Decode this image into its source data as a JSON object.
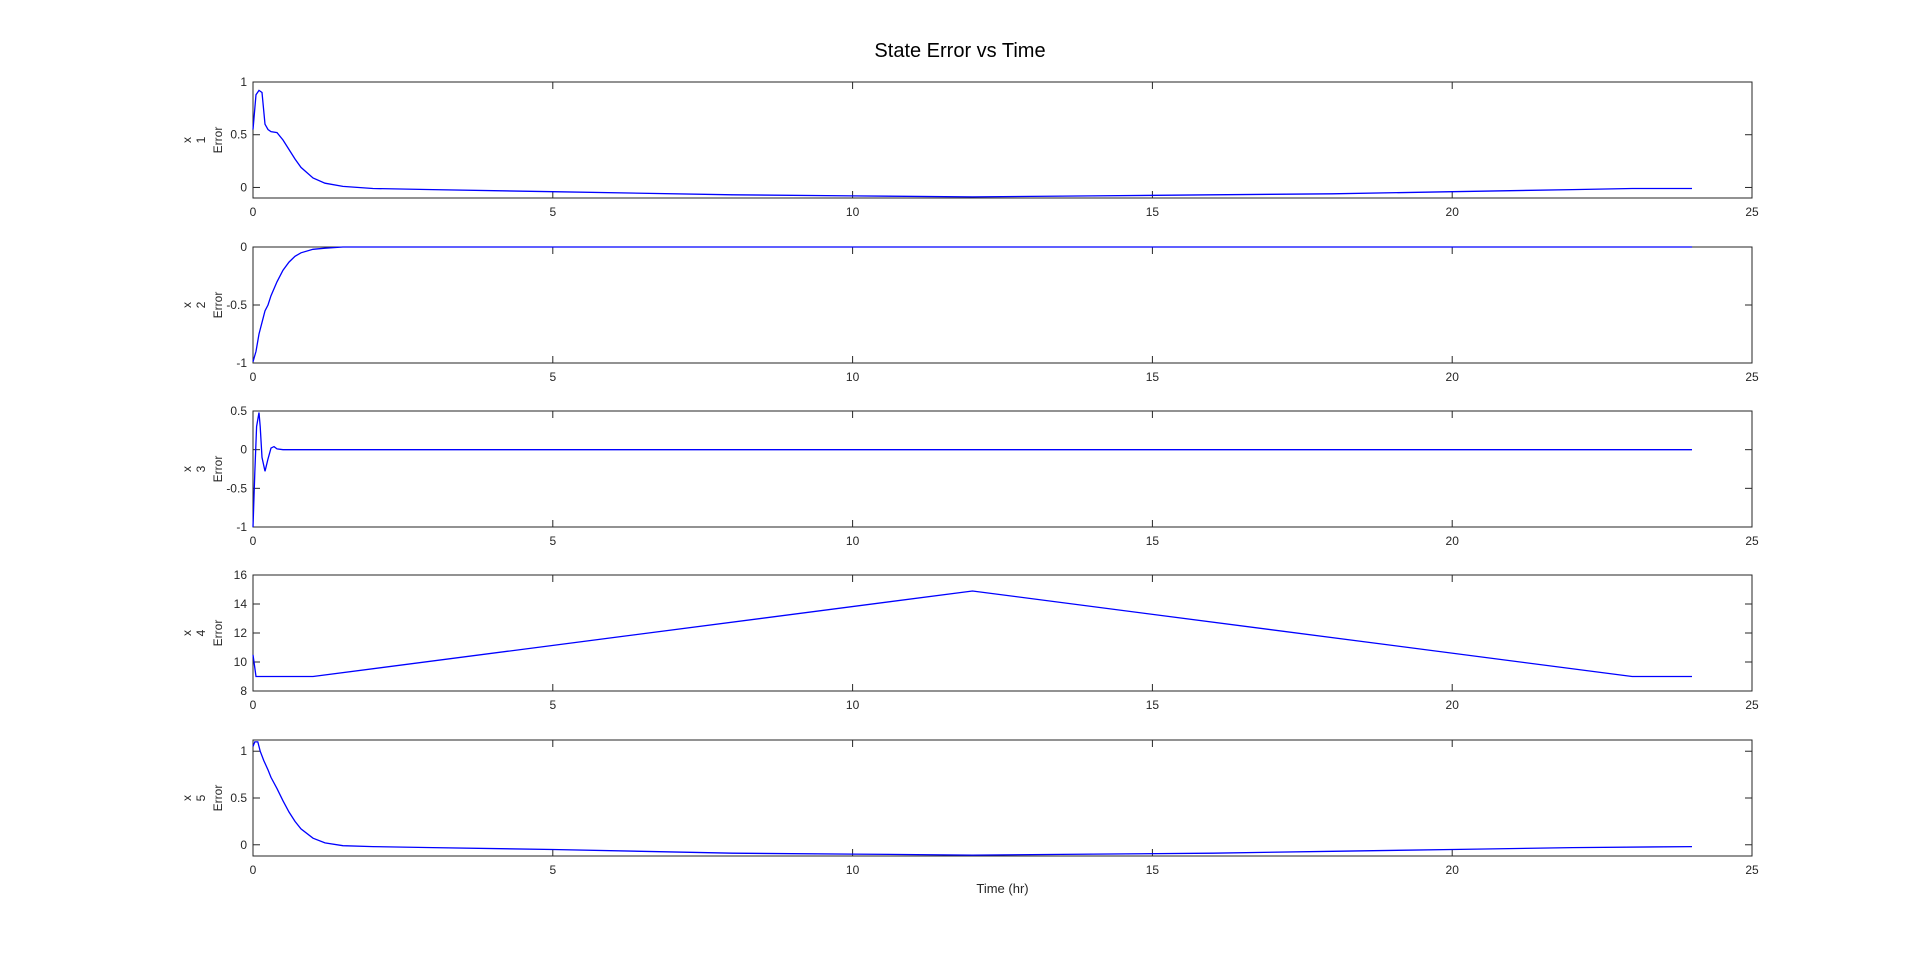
{
  "figure": {
    "title": "State Error vs Time"
  },
  "colors": {
    "line": "#0000ff",
    "axis": "#262626",
    "background": "#ffffff"
  },
  "chart_data": [
    {
      "type": "line",
      "ylabel_main": "x",
      "ylabel_sub": "1",
      "ylabel_err": "Error",
      "xlabel": "",
      "xlim": [
        0,
        25
      ],
      "ylim": [
        -0.1,
        1.0
      ],
      "xticks": [
        0,
        5,
        10,
        15,
        20,
        25
      ],
      "yticks": [
        0,
        0.5,
        1
      ],
      "ytick_labels": [
        "0",
        "0.5",
        "1"
      ],
      "grid": false,
      "series": [
        {
          "x": [
            0,
            0.05,
            0.1,
            0.15,
            0.2,
            0.25,
            0.3,
            0.4,
            0.5,
            0.6,
            0.7,
            0.8,
            1.0,
            1.2,
            1.5,
            2,
            3,
            5,
            8,
            10,
            12,
            14,
            16,
            18,
            20,
            22,
            23,
            24
          ],
          "y": [
            0.55,
            0.88,
            0.92,
            0.9,
            0.6,
            0.55,
            0.53,
            0.52,
            0.45,
            0.36,
            0.27,
            0.19,
            0.09,
            0.04,
            0.01,
            -0.01,
            -0.02,
            -0.04,
            -0.07,
            -0.08,
            -0.09,
            -0.08,
            -0.07,
            -0.06,
            -0.04,
            -0.02,
            -0.01,
            -0.01
          ]
        }
      ]
    },
    {
      "type": "line",
      "ylabel_main": "x",
      "ylabel_sub": "2",
      "ylabel_err": "Error",
      "xlabel": "",
      "xlim": [
        0,
        25
      ],
      "ylim": [
        -1,
        0
      ],
      "xticks": [
        0,
        5,
        10,
        15,
        20,
        25
      ],
      "yticks": [
        -1,
        -0.5,
        0
      ],
      "ytick_labels": [
        "-1",
        "-0.5",
        "0"
      ],
      "grid": false,
      "series": [
        {
          "x": [
            0,
            0.05,
            0.1,
            0.15,
            0.2,
            0.25,
            0.3,
            0.4,
            0.5,
            0.6,
            0.7,
            0.8,
            1.0,
            1.2,
            1.5,
            2,
            5,
            10,
            15,
            20,
            24
          ],
          "y": [
            -0.99,
            -0.9,
            -0.75,
            -0.65,
            -0.55,
            -0.5,
            -0.42,
            -0.3,
            -0.2,
            -0.13,
            -0.08,
            -0.05,
            -0.02,
            -0.01,
            0,
            0,
            0,
            0,
            0,
            0,
            0
          ]
        }
      ]
    },
    {
      "type": "line",
      "ylabel_main": "x",
      "ylabel_sub": "3",
      "ylabel_err": "Error",
      "xlabel": "",
      "xlim": [
        0,
        25
      ],
      "ylim": [
        -1,
        0.5
      ],
      "xticks": [
        0,
        5,
        10,
        15,
        20,
        25
      ],
      "yticks": [
        -1,
        -0.5,
        0,
        0.5
      ],
      "ytick_labels": [
        "-1",
        "-0.5",
        "0",
        "0.5"
      ],
      "grid": false,
      "series": [
        {
          "x": [
            0,
            0.03,
            0.06,
            0.1,
            0.12,
            0.15,
            0.2,
            0.25,
            0.3,
            0.35,
            0.4,
            0.5,
            0.6,
            1,
            5,
            10,
            15,
            20,
            24
          ],
          "y": [
            -1.0,
            -0.3,
            0.3,
            0.48,
            0.3,
            -0.1,
            -0.28,
            -0.12,
            0.02,
            0.04,
            0.01,
            0,
            0,
            0,
            0,
            0,
            0,
            0,
            0
          ]
        }
      ]
    },
    {
      "type": "line",
      "ylabel_main": "x",
      "ylabel_sub": "4",
      "ylabel_err": "Error",
      "xlabel": "",
      "xlim": [
        0,
        25
      ],
      "ylim": [
        8,
        16
      ],
      "xticks": [
        0,
        5,
        10,
        15,
        20,
        25
      ],
      "yticks": [
        8,
        10,
        12,
        14,
        16
      ],
      "ytick_labels": [
        "8",
        "10",
        "12",
        "14",
        "16"
      ],
      "grid": false,
      "series": [
        {
          "x": [
            0,
            0.05,
            1.0,
            12,
            23,
            24
          ],
          "y": [
            10.5,
            9.0,
            9.0,
            14.9,
            9.0,
            9.0
          ]
        }
      ]
    },
    {
      "type": "line",
      "ylabel_main": "x",
      "ylabel_sub": "5",
      "ylabel_err": "Error",
      "xlabel": "Time (hr)",
      "xlim": [
        0,
        25
      ],
      "ylim": [
        -0.12,
        1.12
      ],
      "xticks": [
        0,
        5,
        10,
        15,
        20,
        25
      ],
      "yticks": [
        0,
        0.5,
        1
      ],
      "ytick_labels": [
        "0",
        "0.5",
        "1"
      ],
      "grid": false,
      "series": [
        {
          "x": [
            0,
            0.03,
            0.08,
            0.12,
            0.18,
            0.25,
            0.3,
            0.4,
            0.5,
            0.6,
            0.7,
            0.8,
            1.0,
            1.2,
            1.5,
            2,
            3,
            5,
            8,
            10,
            12,
            14,
            16,
            18,
            20,
            22,
            24
          ],
          "y": [
            1.05,
            1.1,
            1.1,
            1.0,
            0.9,
            0.8,
            0.72,
            0.6,
            0.47,
            0.35,
            0.25,
            0.17,
            0.07,
            0.02,
            -0.01,
            -0.02,
            -0.03,
            -0.05,
            -0.09,
            -0.1,
            -0.11,
            -0.1,
            -0.09,
            -0.07,
            -0.05,
            -0.03,
            -0.02
          ]
        }
      ]
    }
  ]
}
